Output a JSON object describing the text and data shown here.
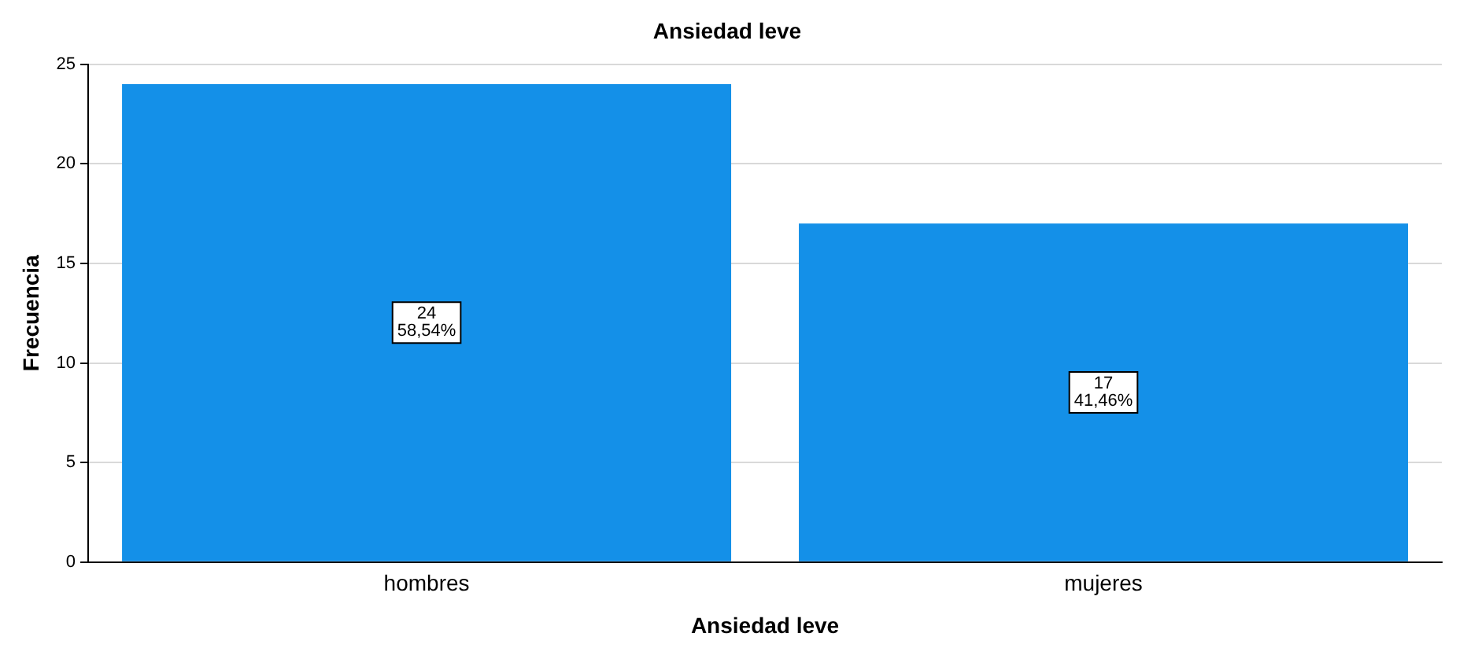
{
  "chart_data": {
    "type": "bar",
    "title": "Ansiedad leve",
    "xlabel": "Ansiedad leve",
    "ylabel": "Frecuencia",
    "categories": [
      "hombres",
      "mujeres"
    ],
    "values": [
      24,
      17
    ],
    "value_labels": [
      "24\n58,54%",
      "17\n41,46%"
    ],
    "color": "#1490e8",
    "ylim": [
      0,
      25
    ],
    "yticks": [
      0,
      5,
      10,
      15,
      20,
      25
    ],
    "grid": "y"
  }
}
